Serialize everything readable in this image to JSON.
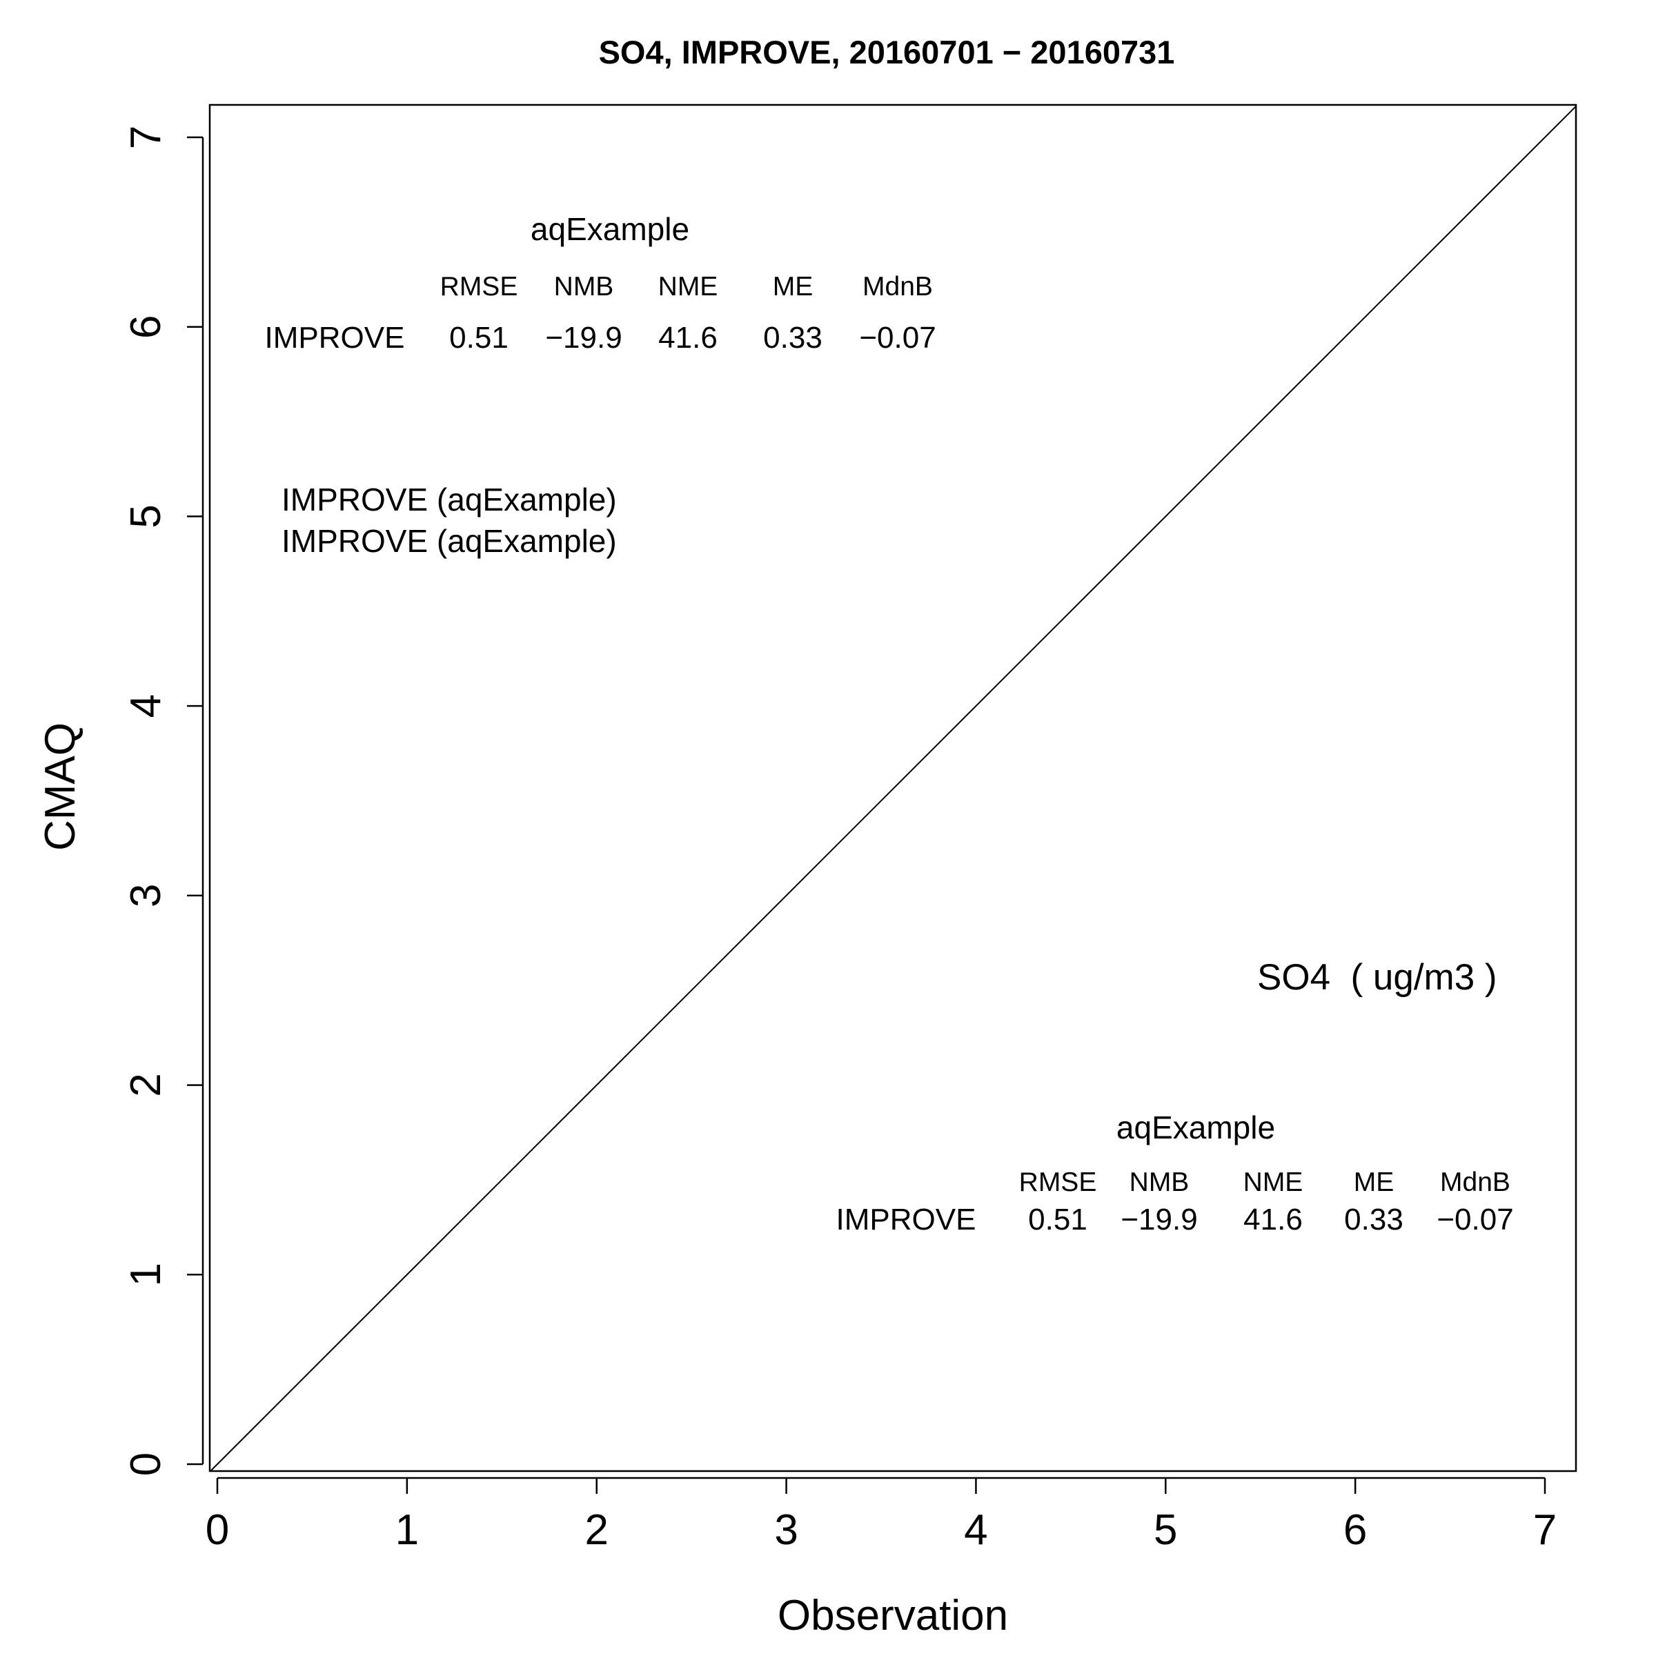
{
  "chart_data": {
    "type": "scatter",
    "title": "SO4, IMPROVE, 20160701 − 20160731",
    "xlabel": "Observation",
    "ylabel": "CMAQ",
    "xlim": [
      0,
      7
    ],
    "ylim": [
      0,
      7
    ],
    "x_ticks": [
      "0",
      "1",
      "2",
      "3",
      "4",
      "5",
      "6",
      "7"
    ],
    "y_ticks": [
      "0",
      "1",
      "2",
      "3",
      "4",
      "5",
      "6",
      "7"
    ],
    "reference_line": "1:1",
    "grid": false,
    "points": [],
    "legend": {
      "entries": [
        "IMPROVE (aqExample)",
        "IMPROVE (aqExample)"
      ]
    },
    "species_label": "SO4  ( ug/m3 )",
    "stats_tables": [
      {
        "run": "aqExample",
        "columns": [
          "RMSE",
          "NMB",
          "NME",
          "ME",
          "MdnB"
        ],
        "rows": [
          {
            "network": "IMPROVE",
            "values": [
              "0.51",
              "−19.9",
              "41.6",
              "0.33",
              "−0.07"
            ]
          }
        ]
      },
      {
        "run": "aqExample",
        "columns": [
          "RMSE",
          "NMB",
          "NME",
          "ME",
          "MdnB"
        ],
        "rows": [
          {
            "network": "IMPROVE",
            "values": [
              "0.51",
              "−19.9",
              "41.6",
              "0.33",
              "−0.07"
            ]
          }
        ]
      }
    ]
  }
}
